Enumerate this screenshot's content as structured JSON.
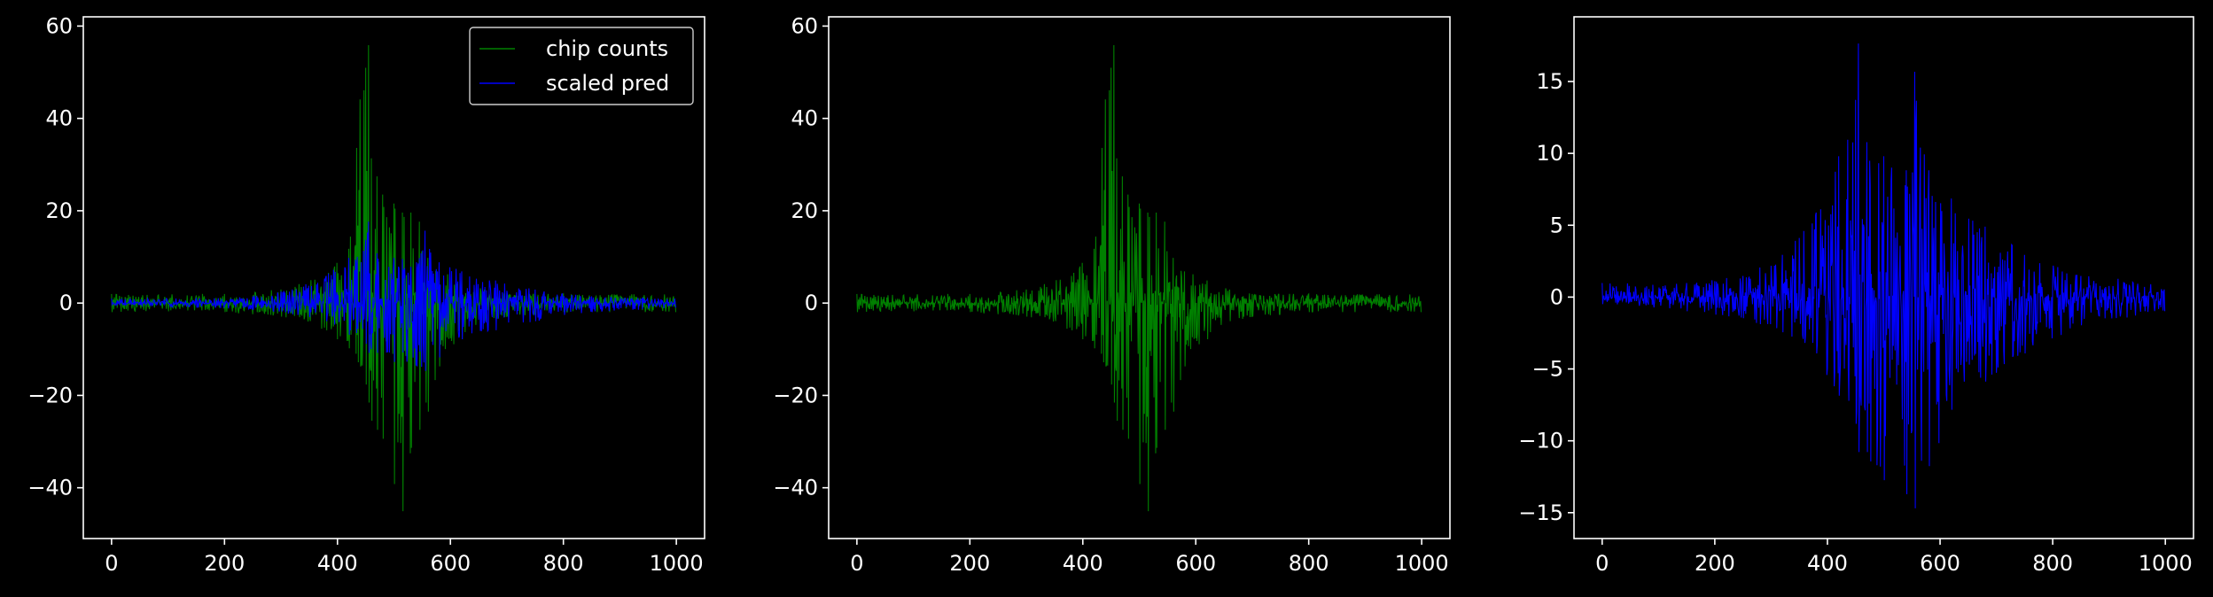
{
  "figure": {
    "background": "#000000",
    "axes_color": "#ffffff",
    "text_color": "#ffffff"
  },
  "chart_data": [
    {
      "type": "line",
      "panel": "left",
      "xlim": [
        -50,
        1050
      ],
      "ylim": [
        -51,
        62
      ],
      "xticks": [
        0,
        200,
        400,
        600,
        800,
        1000
      ],
      "xtick_labels": [
        "0",
        "200",
        "400",
        "600",
        "800",
        "1000"
      ],
      "yticks": [
        -40,
        -20,
        0,
        20,
        40,
        60
      ],
      "ytick_labels": [
        "−40",
        "−20",
        "0",
        "20",
        "40",
        "60"
      ],
      "legend": {
        "placement": "top-right",
        "entries": [
          "chip counts",
          "scaled pred"
        ]
      },
      "series": [
        {
          "name": "chip counts",
          "color": "#008000",
          "n_points": 1000,
          "center": 500,
          "envelope_x": [
            0,
            200,
            300,
            380,
            420,
            440,
            450,
            455,
            460,
            470,
            480,
            500,
            515,
            530,
            545,
            560,
            580,
            620,
            660,
            700,
            800,
            1000
          ],
          "envelope_upper": [
            2,
            2,
            3,
            6,
            12,
            45,
            52,
            57,
            32,
            28,
            24,
            22,
            20,
            20,
            18,
            10,
            7,
            5,
            3,
            2,
            2,
            2
          ],
          "envelope_lower": [
            -2,
            -2,
            -3,
            -6,
            -10,
            -14,
            -18,
            -22,
            -26,
            -28,
            -30,
            -40,
            -46,
            -32,
            -28,
            -24,
            -14,
            -8,
            -4,
            -3,
            -2,
            -2
          ]
        },
        {
          "name": "scaled pred",
          "color": "#0000ff",
          "n_points": 1000,
          "center": 500,
          "envelope_x": [
            0,
            150,
            250,
            320,
            380,
            420,
            450,
            455,
            470,
            500,
            540,
            555,
            580,
            620,
            680,
            750,
            850,
            1000
          ],
          "envelope_upper": [
            1,
            1,
            1.5,
            3,
            6,
            10,
            14,
            18,
            11,
            10,
            9,
            16,
            9,
            7,
            5,
            3,
            1.5,
            1
          ],
          "envelope_lower": [
            -0.5,
            -1,
            -1.5,
            -2.5,
            -4,
            -7,
            -9,
            -11,
            -11,
            -13,
            -14,
            -15,
            -12,
            -8,
            -6,
            -4,
            -2,
            -1
          ]
        }
      ]
    },
    {
      "type": "line",
      "panel": "middle",
      "xlim": [
        -50,
        1050
      ],
      "ylim": [
        -51,
        62
      ],
      "xticks": [
        0,
        200,
        400,
        600,
        800,
        1000
      ],
      "xtick_labels": [
        "0",
        "200",
        "400",
        "600",
        "800",
        "1000"
      ],
      "yticks": [
        -40,
        -20,
        0,
        20,
        40,
        60
      ],
      "ytick_labels": [
        "−40",
        "−20",
        "0",
        "20",
        "40",
        "60"
      ],
      "series": [
        {
          "color": "#008000",
          "n_points": 1000,
          "center": 500,
          "envelope_x": [
            0,
            200,
            300,
            380,
            420,
            440,
            450,
            455,
            460,
            470,
            480,
            500,
            515,
            530,
            545,
            560,
            580,
            620,
            660,
            700,
            800,
            1000
          ],
          "envelope_upper": [
            2,
            2,
            3,
            6,
            12,
            45,
            52,
            57,
            32,
            28,
            24,
            22,
            20,
            20,
            18,
            10,
            7,
            5,
            3,
            2,
            2,
            2
          ],
          "envelope_lower": [
            -2,
            -2,
            -3,
            -6,
            -10,
            -14,
            -18,
            -22,
            -26,
            -28,
            -30,
            -40,
            -46,
            -32,
            -28,
            -24,
            -14,
            -8,
            -4,
            -3,
            -2,
            -2
          ]
        }
      ]
    },
    {
      "type": "line",
      "panel": "right",
      "xlim": [
        -50,
        1050
      ],
      "ylim": [
        -16.8,
        19.5
      ],
      "xticks": [
        0,
        200,
        400,
        600,
        800,
        1000
      ],
      "xtick_labels": [
        "0",
        "200",
        "400",
        "600",
        "800",
        "1000"
      ],
      "yticks": [
        -15,
        -10,
        -5,
        0,
        5,
        10,
        15
      ],
      "ytick_labels": [
        "−15",
        "−10",
        "−5",
        "0",
        "5",
        "10",
        "15"
      ],
      "series": [
        {
          "color": "#0000ff",
          "n_points": 1000,
          "center": 500,
          "envelope_x": [
            0,
            150,
            250,
            320,
            380,
            420,
            450,
            455,
            470,
            500,
            540,
            555,
            580,
            620,
            680,
            750,
            850,
            1000
          ],
          "envelope_upper": [
            1,
            1,
            1.5,
            3,
            6,
            10,
            14,
            18,
            11,
            10,
            9,
            16,
            9,
            7,
            5,
            3,
            1.5,
            1
          ],
          "envelope_lower": [
            -0.5,
            -1,
            -1.5,
            -2.5,
            -4,
            -7,
            -9,
            -11,
            -11,
            -13,
            -14,
            -15,
            -12,
            -8,
            -6,
            -4,
            -2,
            -1
          ]
        }
      ]
    }
  ]
}
